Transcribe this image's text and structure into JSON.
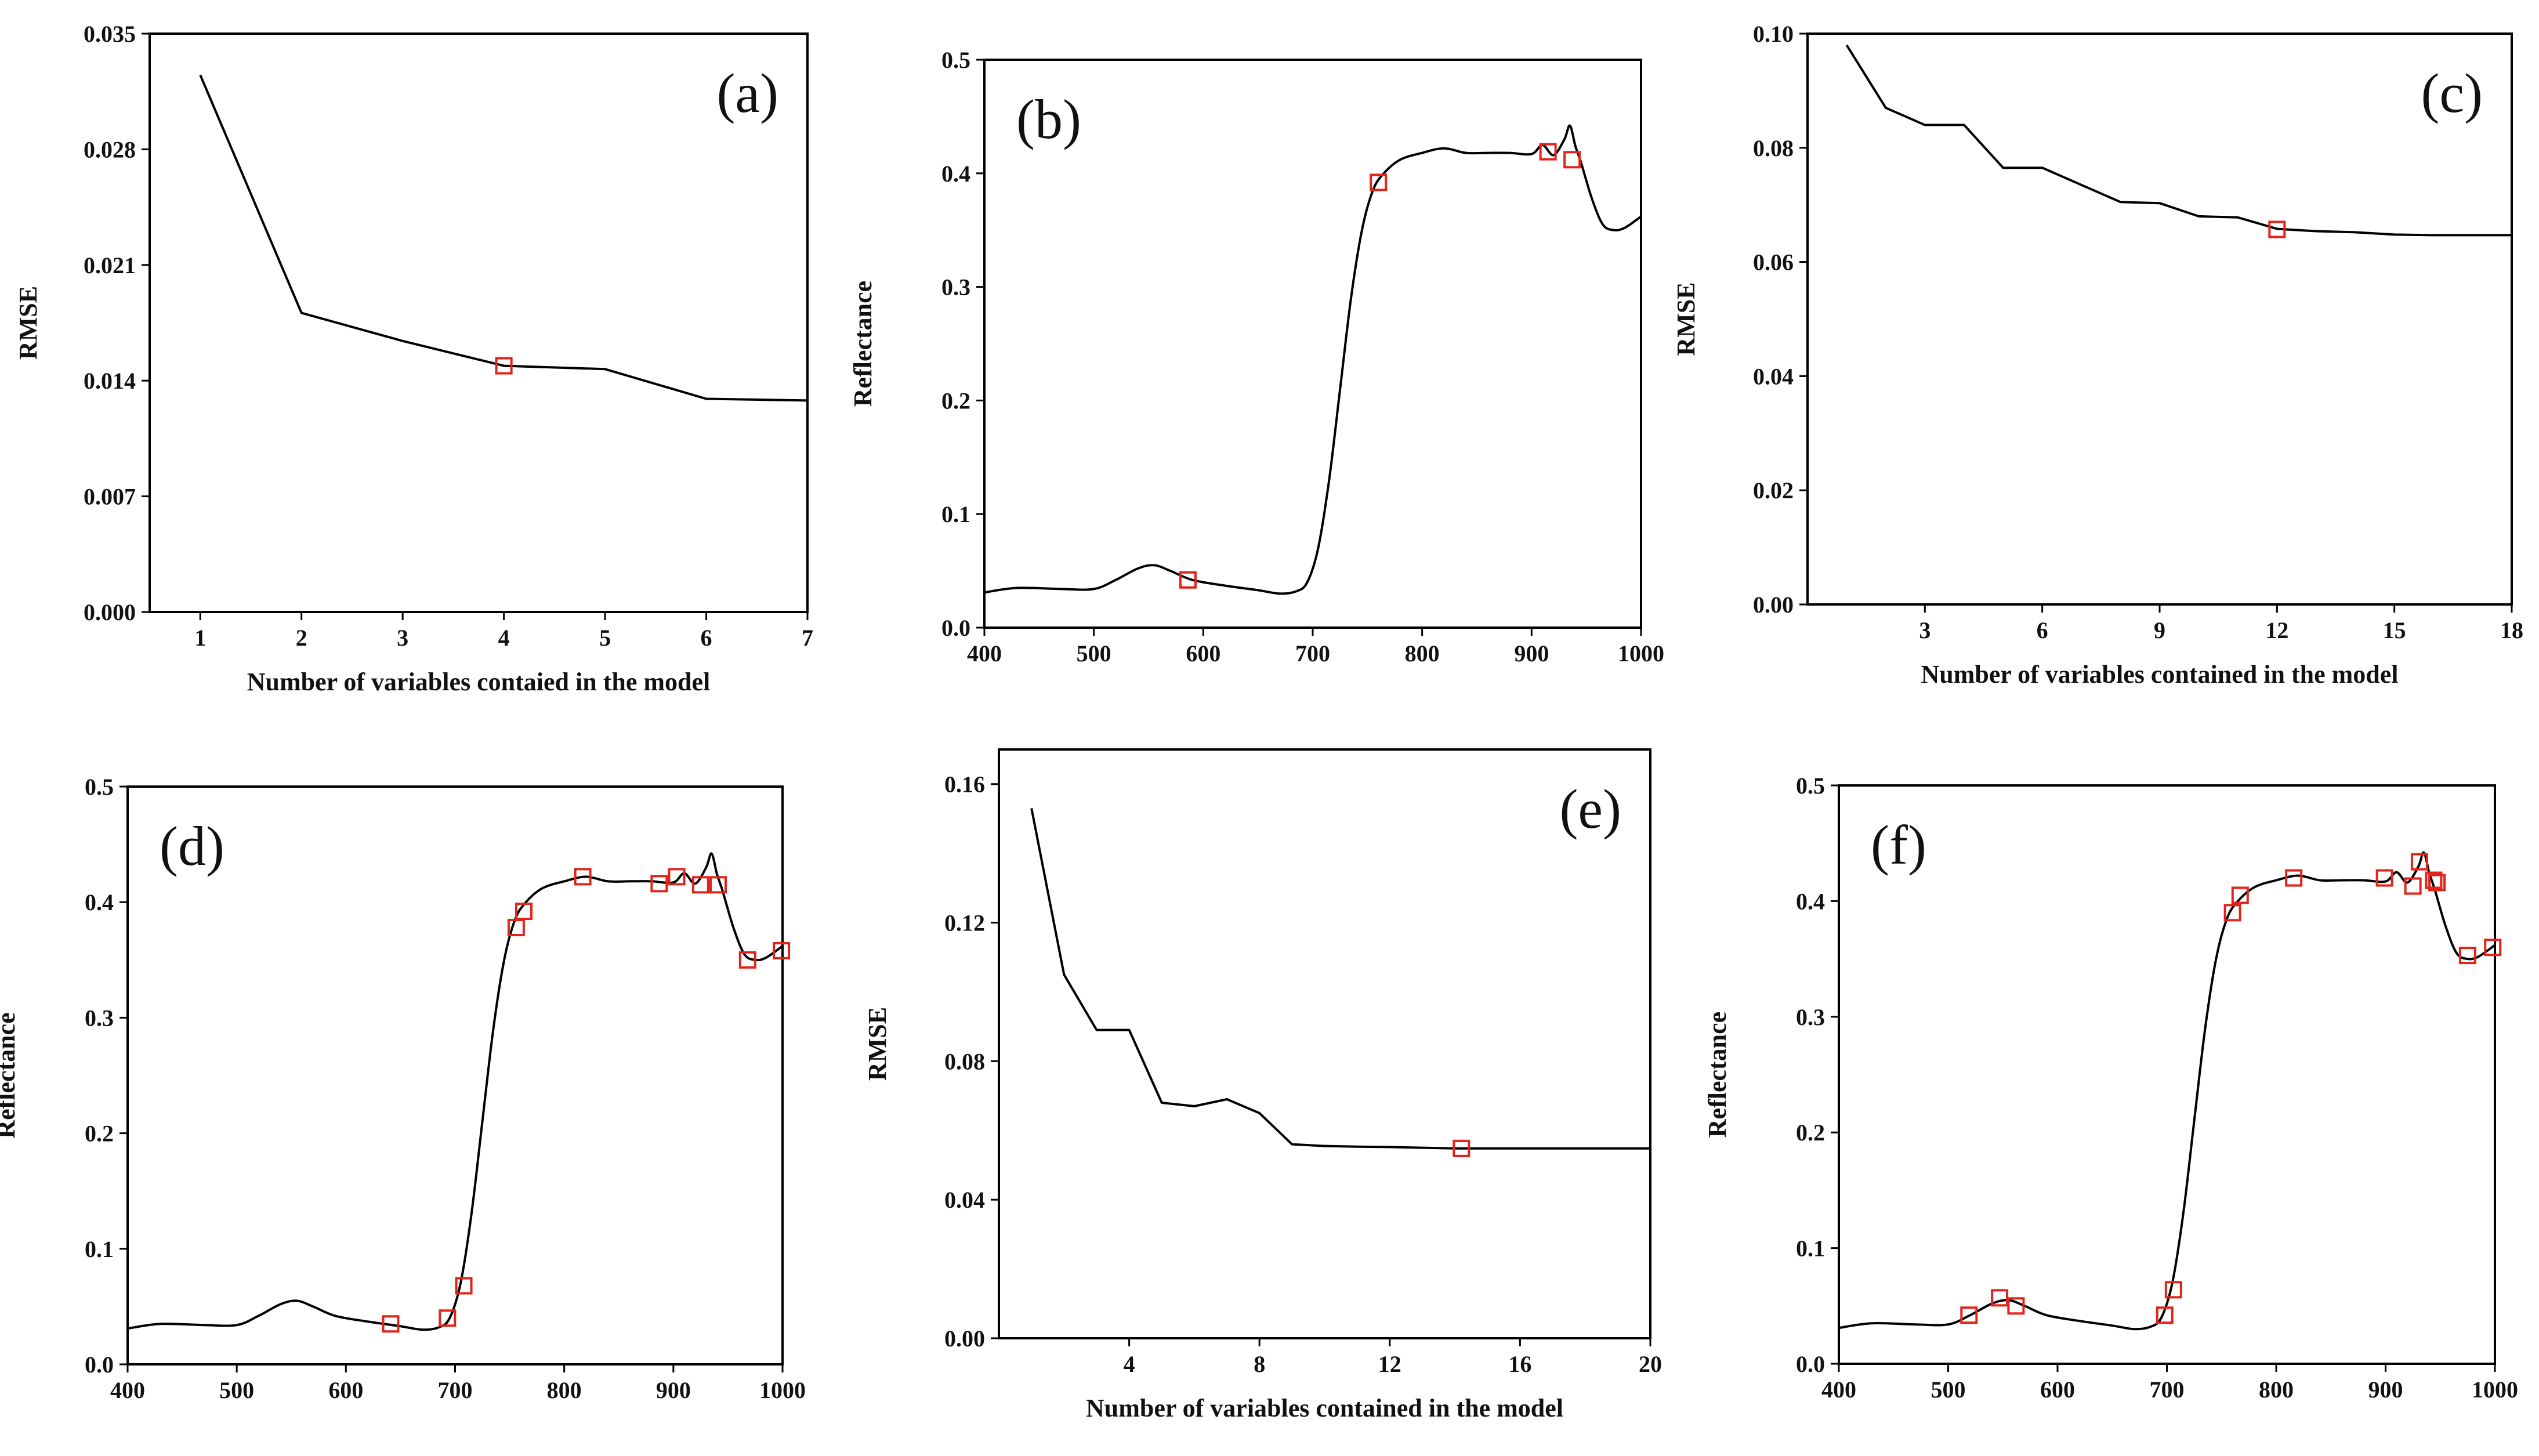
{
  "chart_data": [
    {
      "id": "a",
      "type": "line",
      "panel_label": "(a)",
      "xlabel": "Number of variables contaied in the model",
      "ylabel": "RMSE",
      "xlim": [
        0.5,
        7
      ],
      "ylim": [
        0,
        0.035
      ],
      "xticks": [
        1,
        2,
        3,
        4,
        5,
        6,
        7
      ],
      "xtick_labels": [
        "1",
        "2",
        "3",
        "4",
        "5",
        "6",
        "7"
      ],
      "yticks": [
        0,
        0.007,
        0.014,
        0.021,
        0.028,
        0.035
      ],
      "ytick_labels": [
        "0.000",
        "0.007",
        "0.014",
        "0.021",
        "0.028",
        "0.035"
      ],
      "series": [
        {
          "name": "RMSE",
          "x": [
            1,
            2,
            3,
            4,
            5,
            6,
            7
          ],
          "y": [
            0.0325,
            0.0181,
            0.0164,
            0.0149,
            0.0147,
            0.0129,
            0.0128
          ]
        }
      ],
      "markers": [
        {
          "x": 4,
          "y": 0.0149
        }
      ]
    },
    {
      "id": "b",
      "type": "line",
      "panel_label": "(b)",
      "xlabel": "",
      "ylabel": "Reflectance",
      "xlim": [
        400,
        1000
      ],
      "ylim": [
        0,
        0.5
      ],
      "xticks": [
        400,
        500,
        600,
        700,
        800,
        900,
        1000
      ],
      "xtick_labels": [
        "400",
        "500",
        "600",
        "700",
        "800",
        "900",
        "1000"
      ],
      "yticks": [
        0,
        0.1,
        0.2,
        0.3,
        0.4,
        0.5
      ],
      "ytick_labels": [
        "0.0",
        "0.1",
        "0.2",
        "0.3",
        "0.4",
        "0.5"
      ],
      "series": [
        {
          "name": "Reflectance",
          "x": [
            400,
            430,
            470,
            500,
            520,
            540,
            555,
            570,
            590,
            620,
            650,
            670,
            685,
            695,
            705,
            715,
            725,
            735,
            745,
            755,
            765,
            780,
            800,
            820,
            840,
            860,
            880,
            900,
            910,
            920,
            930,
            935,
            940,
            945,
            955,
            965,
            975,
            985,
            1000
          ],
          "y": [
            0.031,
            0.035,
            0.034,
            0.034,
            0.042,
            0.052,
            0.055,
            0.05,
            0.042,
            0.037,
            0.033,
            0.03,
            0.032,
            0.04,
            0.07,
            0.13,
            0.21,
            0.29,
            0.35,
            0.385,
            0.4,
            0.412,
            0.418,
            0.422,
            0.418,
            0.418,
            0.418,
            0.417,
            0.425,
            0.416,
            0.43,
            0.442,
            0.424,
            0.41,
            0.378,
            0.355,
            0.35,
            0.352,
            0.362
          ]
        }
      ],
      "markers": [
        {
          "x": 586,
          "y": 0.042
        },
        {
          "x": 760,
          "y": 0.392
        },
        {
          "x": 915,
          "y": 0.419
        },
        {
          "x": 937,
          "y": 0.412
        }
      ]
    },
    {
      "id": "c",
      "type": "line",
      "panel_label": "(c)",
      "xlabel": "Number of variables contained in the model",
      "ylabel": "RMSE",
      "xlim": [
        0,
        18
      ],
      "ylim": [
        0,
        0.1
      ],
      "xticks": [
        3,
        6,
        9,
        12,
        15,
        18
      ],
      "xtick_labels": [
        "3",
        "6",
        "9",
        "12",
        "15",
        "18"
      ],
      "yticks": [
        0,
        0.02,
        0.04,
        0.06,
        0.08,
        0.1
      ],
      "ytick_labels": [
        "0.00",
        "0.02",
        "0.04",
        "0.06",
        "0.08",
        "0.10"
      ],
      "series": [
        {
          "name": "RMSE",
          "x": [
            1,
            2,
            3,
            4,
            5,
            6,
            7,
            8,
            9,
            10,
            11,
            12,
            13,
            14,
            15,
            16,
            17,
            18
          ],
          "y": [
            0.098,
            0.087,
            0.084,
            0.084,
            0.0765,
            0.0765,
            0.0735,
            0.0705,
            0.0703,
            0.068,
            0.0678,
            0.0658,
            0.0654,
            0.0652,
            0.0648,
            0.0647,
            0.0647,
            0.0647
          ]
        }
      ],
      "markers": [
        {
          "x": 12,
          "y": 0.0657
        }
      ]
    },
    {
      "id": "d",
      "type": "line",
      "panel_label": "(d)",
      "xlabel": "",
      "ylabel": "Reflectance",
      "xlim": [
        400,
        1000
      ],
      "ylim": [
        0,
        0.5
      ],
      "xticks": [
        400,
        500,
        600,
        700,
        800,
        900,
        1000
      ],
      "xtick_labels": [
        "400",
        "500",
        "600",
        "700",
        "800",
        "900",
        "1000"
      ],
      "yticks": [
        0,
        0.1,
        0.2,
        0.3,
        0.4,
        0.5
      ],
      "ytick_labels": [
        "0.0",
        "0.1",
        "0.2",
        "0.3",
        "0.4",
        "0.5"
      ],
      "series": [
        {
          "name": "Reflectance",
          "x": [
            400,
            430,
            470,
            500,
            520,
            540,
            555,
            570,
            590,
            620,
            650,
            670,
            685,
            695,
            705,
            715,
            725,
            735,
            745,
            755,
            765,
            780,
            800,
            820,
            840,
            860,
            880,
            900,
            910,
            920,
            930,
            935,
            940,
            945,
            955,
            965,
            975,
            985,
            1000
          ],
          "y": [
            0.031,
            0.035,
            0.034,
            0.034,
            0.042,
            0.052,
            0.055,
            0.05,
            0.042,
            0.037,
            0.033,
            0.03,
            0.032,
            0.04,
            0.07,
            0.13,
            0.21,
            0.29,
            0.35,
            0.385,
            0.4,
            0.412,
            0.418,
            0.422,
            0.418,
            0.418,
            0.418,
            0.417,
            0.425,
            0.416,
            0.43,
            0.442,
            0.424,
            0.41,
            0.378,
            0.355,
            0.35,
            0.352,
            0.362
          ]
        }
      ],
      "markers": [
        {
          "x": 641,
          "y": 0.035
        },
        {
          "x": 693,
          "y": 0.04
        },
        {
          "x": 708,
          "y": 0.068
        },
        {
          "x": 756,
          "y": 0.378
        },
        {
          "x": 763,
          "y": 0.392
        },
        {
          "x": 817,
          "y": 0.422
        },
        {
          "x": 887,
          "y": 0.416
        },
        {
          "x": 903,
          "y": 0.422
        },
        {
          "x": 925,
          "y": 0.415
        },
        {
          "x": 941,
          "y": 0.415
        },
        {
          "x": 968,
          "y": 0.35
        },
        {
          "x": 999,
          "y": 0.358
        }
      ]
    },
    {
      "id": "e",
      "type": "line",
      "panel_label": "(e)",
      "xlabel": "Number of variables contained in the model",
      "ylabel": "RMSE",
      "xlim": [
        0,
        20
      ],
      "ylim": [
        0,
        0.17
      ],
      "xticks": [
        4,
        8,
        12,
        16,
        20
      ],
      "xtick_labels": [
        "4",
        "8",
        "12",
        "16",
        "20"
      ],
      "yticks": [
        0,
        0.04,
        0.08,
        0.12,
        0.16
      ],
      "ytick_labels": [
        "0.00",
        "0.04",
        "0.08",
        "0.12",
        "0.16"
      ],
      "series": [
        {
          "name": "RMSE",
          "x": [
            1,
            2,
            3,
            4,
            5,
            6,
            7,
            8,
            9,
            10,
            11,
            12,
            13,
            14,
            15,
            16,
            17,
            18,
            19,
            20
          ],
          "y": [
            0.153,
            0.105,
            0.089,
            0.089,
            0.068,
            0.067,
            0.069,
            0.065,
            0.056,
            0.0555,
            0.0553,
            0.0552,
            0.055,
            0.0548,
            0.0548,
            0.0548,
            0.0548,
            0.0548,
            0.0548,
            0.0548
          ]
        }
      ],
      "markers": [
        {
          "x": 14.2,
          "y": 0.0548
        }
      ]
    },
    {
      "id": "f",
      "type": "line",
      "panel_label": "(f)",
      "xlabel": "",
      "ylabel": "Reflectance",
      "xlim": [
        400,
        1000
      ],
      "ylim": [
        0,
        0.5
      ],
      "xticks": [
        400,
        500,
        600,
        700,
        800,
        900,
        1000
      ],
      "xtick_labels": [
        "400",
        "500",
        "600",
        "700",
        "800",
        "900",
        "1000"
      ],
      "yticks": [
        0,
        0.1,
        0.2,
        0.3,
        0.4,
        0.5
      ],
      "ytick_labels": [
        "0.0",
        "0.1",
        "0.2",
        "0.3",
        "0.4",
        "0.5"
      ],
      "series": [
        {
          "name": "Reflectance",
          "x": [
            400,
            430,
            470,
            500,
            520,
            540,
            555,
            570,
            590,
            620,
            650,
            670,
            685,
            695,
            705,
            715,
            725,
            735,
            745,
            755,
            765,
            780,
            800,
            820,
            840,
            860,
            880,
            900,
            910,
            920,
            930,
            935,
            940,
            945,
            955,
            965,
            975,
            985,
            1000
          ],
          "y": [
            0.031,
            0.035,
            0.034,
            0.034,
            0.042,
            0.052,
            0.055,
            0.05,
            0.042,
            0.037,
            0.033,
            0.03,
            0.032,
            0.04,
            0.07,
            0.13,
            0.21,
            0.29,
            0.35,
            0.385,
            0.4,
            0.412,
            0.418,
            0.422,
            0.418,
            0.418,
            0.418,
            0.417,
            0.425,
            0.416,
            0.43,
            0.442,
            0.424,
            0.41,
            0.378,
            0.355,
            0.35,
            0.352,
            0.362
          ]
        }
      ],
      "markers": [
        {
          "x": 519,
          "y": 0.042
        },
        {
          "x": 547,
          "y": 0.057
        },
        {
          "x": 562,
          "y": 0.05
        },
        {
          "x": 698,
          "y": 0.042
        },
        {
          "x": 706,
          "y": 0.064
        },
        {
          "x": 760,
          "y": 0.39
        },
        {
          "x": 767,
          "y": 0.405
        },
        {
          "x": 816,
          "y": 0.42
        },
        {
          "x": 899,
          "y": 0.42
        },
        {
          "x": 925,
          "y": 0.413
        },
        {
          "x": 931,
          "y": 0.434
        },
        {
          "x": 944,
          "y": 0.418
        },
        {
          "x": 947,
          "y": 0.416
        },
        {
          "x": 975,
          "y": 0.353
        },
        {
          "x": 998,
          "y": 0.36
        }
      ]
    }
  ]
}
